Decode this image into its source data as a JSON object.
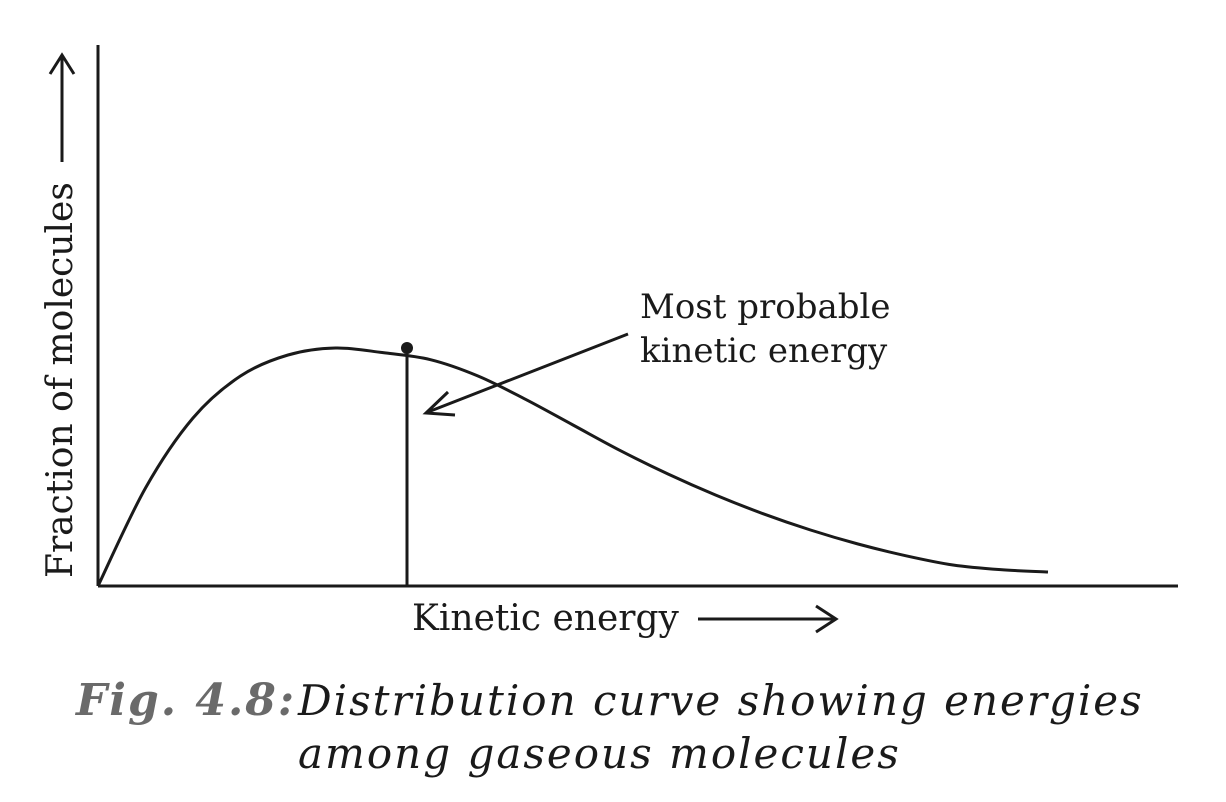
{
  "chart_data": {
    "type": "line",
    "xlabel": "Kinetic energy",
    "ylabel": "Fraction of molecules",
    "xlim": [
      0,
      10
    ],
    "ylim": [
      0,
      1.3
    ],
    "series": [
      {
        "values_x": [
          0,
          0.5,
          1,
          1.5,
          2,
          2.5,
          3,
          3.5,
          4,
          4.5,
          5,
          5.5,
          6,
          6.5,
          7,
          7.5,
          8,
          8.5,
          9,
          9.5,
          10
        ],
        "values_y": [
          0,
          0.42,
          0.72,
          0.9,
          0.99,
          1.02,
          1.0,
          0.97,
          0.9,
          0.8,
          0.69,
          0.58,
          0.48,
          0.39,
          0.31,
          0.24,
          0.18,
          0.13,
          0.09,
          0.07,
          0.06
        ]
      }
    ],
    "annotations": [
      {
        "text_line1": "Most probable",
        "text_line2": "kinetic energy",
        "x": 3.0,
        "y": 1.02
      }
    ]
  },
  "caption": {
    "label": "Fig. 4.8:",
    "line1": "Distribution curve showing energies",
    "line2": "among gaseous molecules"
  },
  "colors": {
    "ink": "#1a1a1a",
    "caption_label": "#6a6a6a"
  }
}
